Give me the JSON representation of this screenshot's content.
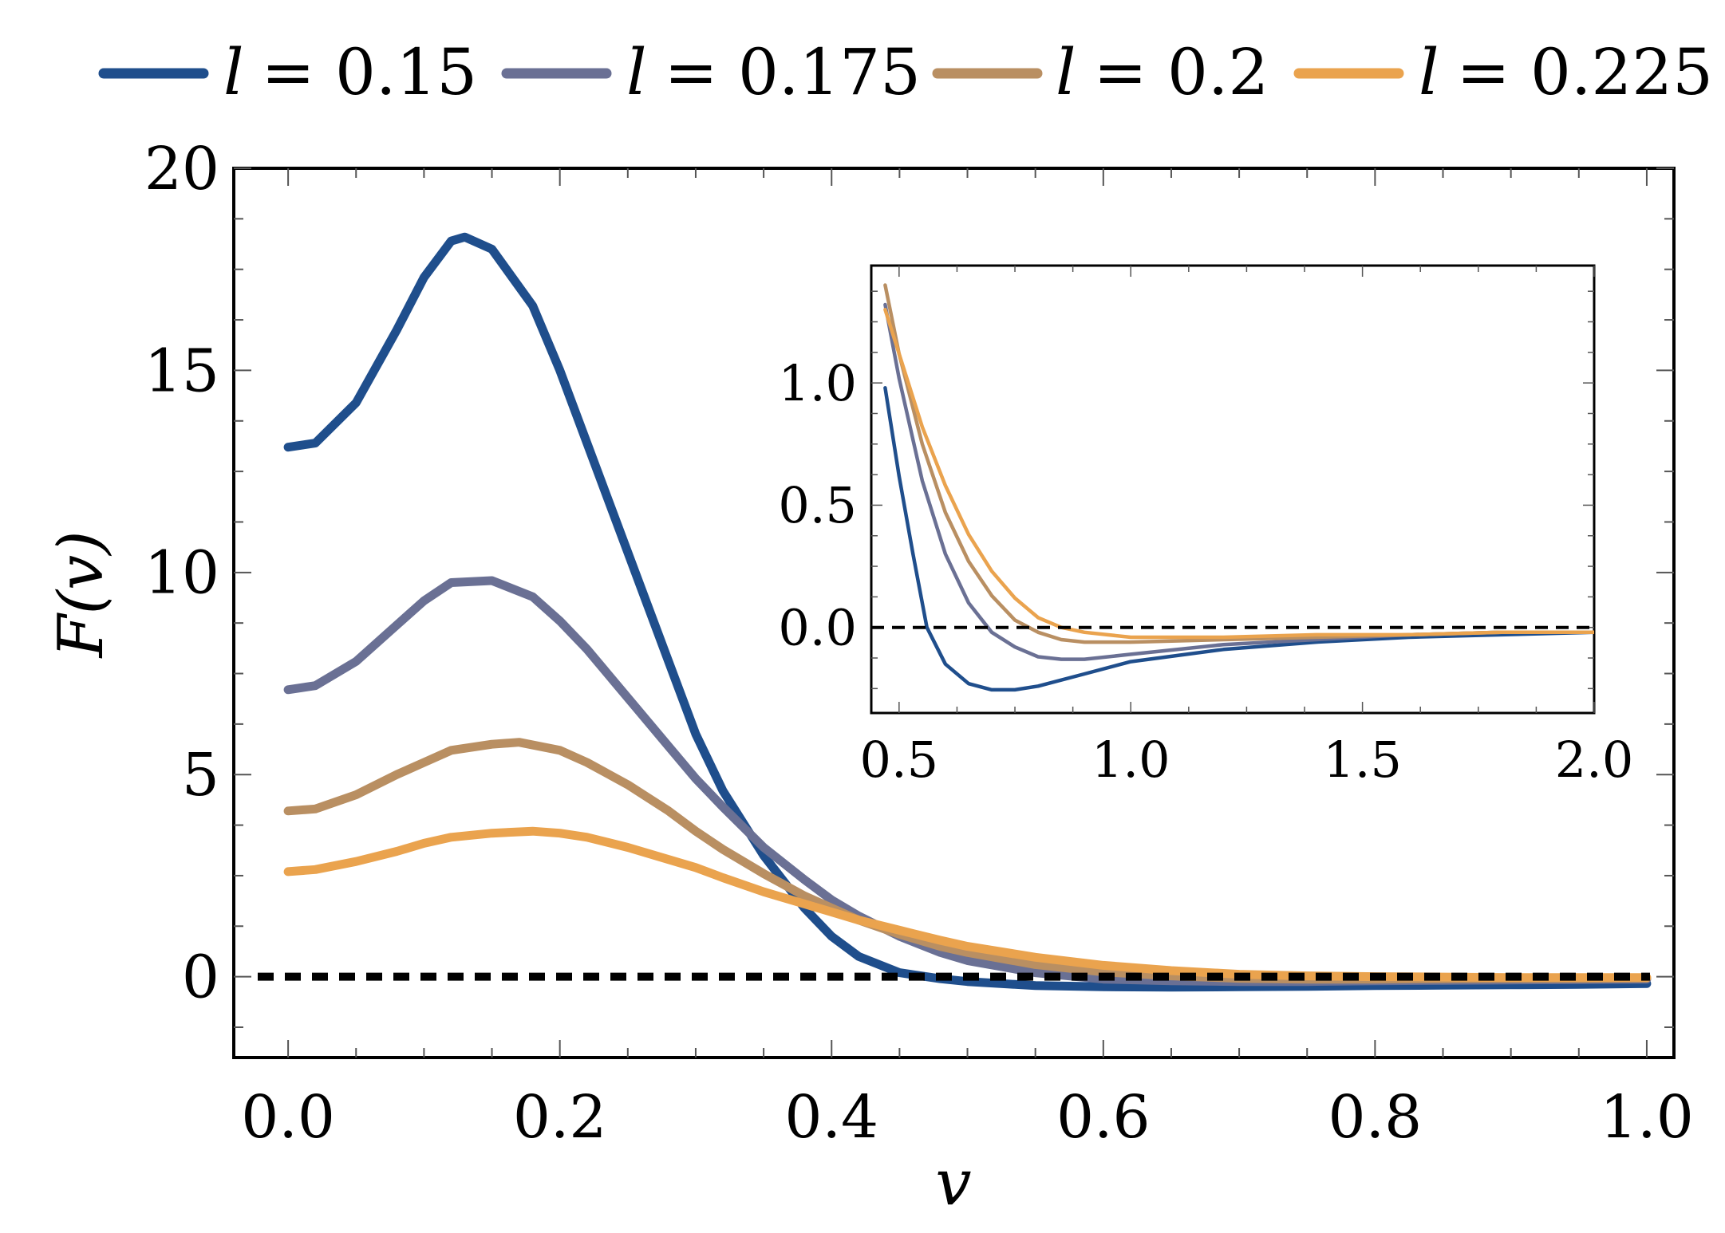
{
  "chart_data": [
    {
      "type": "line",
      "role": "main",
      "xlabel": "v",
      "ylabel": "F(v)",
      "xlim": [
        -0.04,
        1.02
      ],
      "ylim": [
        -2,
        20
      ],
      "xticks": [
        "0.0",
        "0.2",
        "0.4",
        "0.6",
        "0.8",
        "1.0"
      ],
      "yticks": [
        "0",
        "5",
        "10",
        "15",
        "20"
      ],
      "reference_line": {
        "y": 0,
        "style": "dashed",
        "color": "#000000"
      },
      "legend_position": "top",
      "series": [
        {
          "name": "l = 0.15",
          "label_var": "l",
          "label_value": "= 0.15",
          "color": "#1f4e8c",
          "x": [
            0,
            0.02,
            0.05,
            0.08,
            0.1,
            0.12,
            0.13,
            0.15,
            0.18,
            0.2,
            0.22,
            0.25,
            0.28,
            0.3,
            0.32,
            0.35,
            0.38,
            0.4,
            0.42,
            0.45,
            0.48,
            0.5,
            0.55,
            0.6,
            0.65,
            0.7,
            0.75,
            0.8,
            0.85,
            0.9,
            0.95,
            1.0
          ],
          "y": [
            13.1,
            13.2,
            14.2,
            16.0,
            17.3,
            18.2,
            18.3,
            18.0,
            16.6,
            15.0,
            13.2,
            10.5,
            7.8,
            6.0,
            4.6,
            3.0,
            1.7,
            1.0,
            0.5,
            0.1,
            -0.05,
            -0.12,
            -0.22,
            -0.25,
            -0.26,
            -0.25,
            -0.24,
            -0.22,
            -0.21,
            -0.2,
            -0.19,
            -0.17
          ]
        },
        {
          "name": "l = 0.175",
          "label_var": "l",
          "label_value": "= 0.175",
          "color": "#6a7094",
          "x": [
            0,
            0.02,
            0.05,
            0.08,
            0.1,
            0.12,
            0.15,
            0.18,
            0.2,
            0.22,
            0.25,
            0.28,
            0.3,
            0.32,
            0.35,
            0.38,
            0.4,
            0.42,
            0.45,
            0.48,
            0.5,
            0.55,
            0.6,
            0.65,
            0.7,
            0.75,
            0.8,
            0.85,
            0.9,
            0.95,
            1.0
          ],
          "y": [
            7.1,
            7.2,
            7.8,
            8.7,
            9.3,
            9.75,
            9.8,
            9.4,
            8.8,
            8.1,
            6.9,
            5.7,
            4.9,
            4.2,
            3.2,
            2.4,
            1.9,
            1.5,
            1.0,
            0.6,
            0.4,
            0.1,
            -0.06,
            -0.1,
            -0.12,
            -0.12,
            -0.1,
            -0.09,
            -0.08,
            -0.07,
            -0.06
          ]
        },
        {
          "name": "l = 0.2",
          "label_var": "l",
          "label_value": "= 0.2",
          "color": "#b98f62",
          "x": [
            0,
            0.02,
            0.05,
            0.08,
            0.1,
            0.12,
            0.15,
            0.17,
            0.2,
            0.22,
            0.25,
            0.28,
            0.3,
            0.32,
            0.35,
            0.38,
            0.4,
            0.42,
            0.45,
            0.48,
            0.5,
            0.55,
            0.6,
            0.65,
            0.7,
            0.75,
            0.8,
            0.85,
            0.9,
            0.95,
            1.0
          ],
          "y": [
            4.1,
            4.15,
            4.5,
            5.0,
            5.3,
            5.6,
            5.75,
            5.8,
            5.6,
            5.3,
            4.75,
            4.1,
            3.6,
            3.15,
            2.55,
            2.0,
            1.7,
            1.4,
            1.05,
            0.75,
            0.6,
            0.3,
            0.12,
            0.02,
            -0.04,
            -0.06,
            -0.06,
            -0.05,
            -0.04,
            -0.04,
            -0.03
          ]
        },
        {
          "name": "l = 0.225",
          "label_var": "l",
          "label_value": "= 0.225",
          "color": "#eaa34e",
          "x": [
            0,
            0.02,
            0.05,
            0.08,
            0.1,
            0.12,
            0.15,
            0.18,
            0.2,
            0.22,
            0.25,
            0.28,
            0.3,
            0.32,
            0.35,
            0.38,
            0.4,
            0.42,
            0.45,
            0.48,
            0.5,
            0.55,
            0.6,
            0.65,
            0.7,
            0.75,
            0.8,
            0.85,
            0.9,
            0.95,
            1.0
          ],
          "y": [
            2.6,
            2.65,
            2.85,
            3.1,
            3.3,
            3.45,
            3.55,
            3.6,
            3.55,
            3.45,
            3.2,
            2.9,
            2.7,
            2.45,
            2.1,
            1.8,
            1.6,
            1.4,
            1.15,
            0.9,
            0.75,
            0.48,
            0.28,
            0.15,
            0.06,
            0.02,
            0.0,
            -0.01,
            -0.02,
            -0.02,
            -0.02
          ]
        }
      ]
    },
    {
      "type": "line",
      "role": "inset",
      "xlim": [
        0.44,
        2.0
      ],
      "ylim": [
        -0.35,
        1.48
      ],
      "xticks": [
        "0.5",
        "1.0",
        "1.5",
        "2.0"
      ],
      "yticks": [
        "0.0",
        "0.5",
        "1.0"
      ],
      "reference_line": {
        "y": 0,
        "style": "dashed",
        "color": "#000000"
      },
      "series": [
        {
          "name": "l = 0.15",
          "color": "#1f4e8c",
          "x": [
            0.47,
            0.5,
            0.53,
            0.56,
            0.6,
            0.65,
            0.7,
            0.75,
            0.8,
            0.9,
            1.0,
            1.2,
            1.4,
            1.6,
            1.8,
            2.0
          ],
          "y": [
            0.98,
            0.62,
            0.3,
            0.0,
            -0.15,
            -0.23,
            -0.255,
            -0.255,
            -0.24,
            -0.19,
            -0.14,
            -0.09,
            -0.06,
            -0.04,
            -0.03,
            -0.02
          ]
        },
        {
          "name": "l = 0.175",
          "color": "#6a7094",
          "x": [
            0.47,
            0.5,
            0.55,
            0.6,
            0.65,
            0.7,
            0.75,
            0.8,
            0.85,
            0.9,
            1.0,
            1.2,
            1.4,
            1.6,
            1.8,
            2.0
          ],
          "y": [
            1.32,
            1.02,
            0.6,
            0.3,
            0.1,
            -0.02,
            -0.08,
            -0.12,
            -0.13,
            -0.13,
            -0.11,
            -0.07,
            -0.05,
            -0.03,
            -0.02,
            -0.02
          ]
        },
        {
          "name": "l = 0.2",
          "color": "#b98f62",
          "x": [
            0.47,
            0.5,
            0.55,
            0.6,
            0.65,
            0.7,
            0.75,
            0.8,
            0.85,
            0.9,
            1.0,
            1.2,
            1.4,
            1.6,
            1.8,
            2.0
          ],
          "y": [
            1.4,
            1.12,
            0.75,
            0.47,
            0.27,
            0.13,
            0.03,
            -0.02,
            -0.05,
            -0.06,
            -0.06,
            -0.05,
            -0.04,
            -0.03,
            -0.02,
            -0.02
          ]
        },
        {
          "name": "l = 0.225",
          "color": "#eaa34e",
          "x": [
            0.47,
            0.5,
            0.55,
            0.6,
            0.65,
            0.7,
            0.75,
            0.8,
            0.85,
            0.9,
            1.0,
            1.2,
            1.4,
            1.6,
            1.8,
            2.0
          ],
          "y": [
            1.3,
            1.12,
            0.82,
            0.58,
            0.38,
            0.23,
            0.12,
            0.04,
            0.0,
            -0.02,
            -0.04,
            -0.04,
            -0.03,
            -0.03,
            -0.02,
            -0.02
          ]
        }
      ]
    }
  ]
}
